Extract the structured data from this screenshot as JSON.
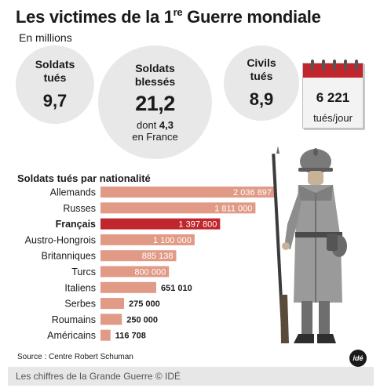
{
  "header": {
    "title_prefix": "Les victimes de la 1",
    "title_sup": "re",
    "title_suffix": " Guerre mondiale",
    "subtitle": "En millions"
  },
  "stats": {
    "soldiers_killed": {
      "label_line1": "Soldats",
      "label_line2": "tués",
      "value": "9,7"
    },
    "soldiers_wounded": {
      "label_line1": "Soldats",
      "label_line2": "blessés",
      "value": "21,2",
      "note_prefix": "dont ",
      "note_value": "4,3",
      "note_suffix": "en France"
    },
    "civilians_killed": {
      "label_line1": "Civils",
      "label_line2": "tués",
      "value": "8,9"
    },
    "per_day": {
      "value": "6 221",
      "unit": "tués/jour"
    }
  },
  "chart_data": {
    "type": "bar",
    "title": "Soldats tués par nationalité",
    "orientation": "horizontal",
    "categories": [
      "Allemands",
      "Russes",
      "Français",
      "Austro-Hongrois",
      "Britanniques",
      "Turcs",
      "Italiens",
      "Serbes",
      "Roumains",
      "Américains"
    ],
    "values": [
      2036897,
      1811000,
      1397800,
      1100000,
      885138,
      800000,
      651010,
      275000,
      250000,
      116708
    ],
    "value_labels": [
      "2 036 897",
      "1 811 000",
      "1 397 800",
      "1 100 000",
      "885 138",
      "800 000",
      "651 010",
      "275 000",
      "250 000",
      "116 708"
    ],
    "highlight": "Français",
    "colors": {
      "bar": "#e09a86",
      "highlight": "#c0262c",
      "inside_label": "#ffffff",
      "outside_label": "#1a1a1a"
    }
  },
  "source": "Source : Centre Robert Schuman",
  "logo_text": "idé",
  "footer": "Les chiffres de la Grande Guerre  © IDÉ"
}
